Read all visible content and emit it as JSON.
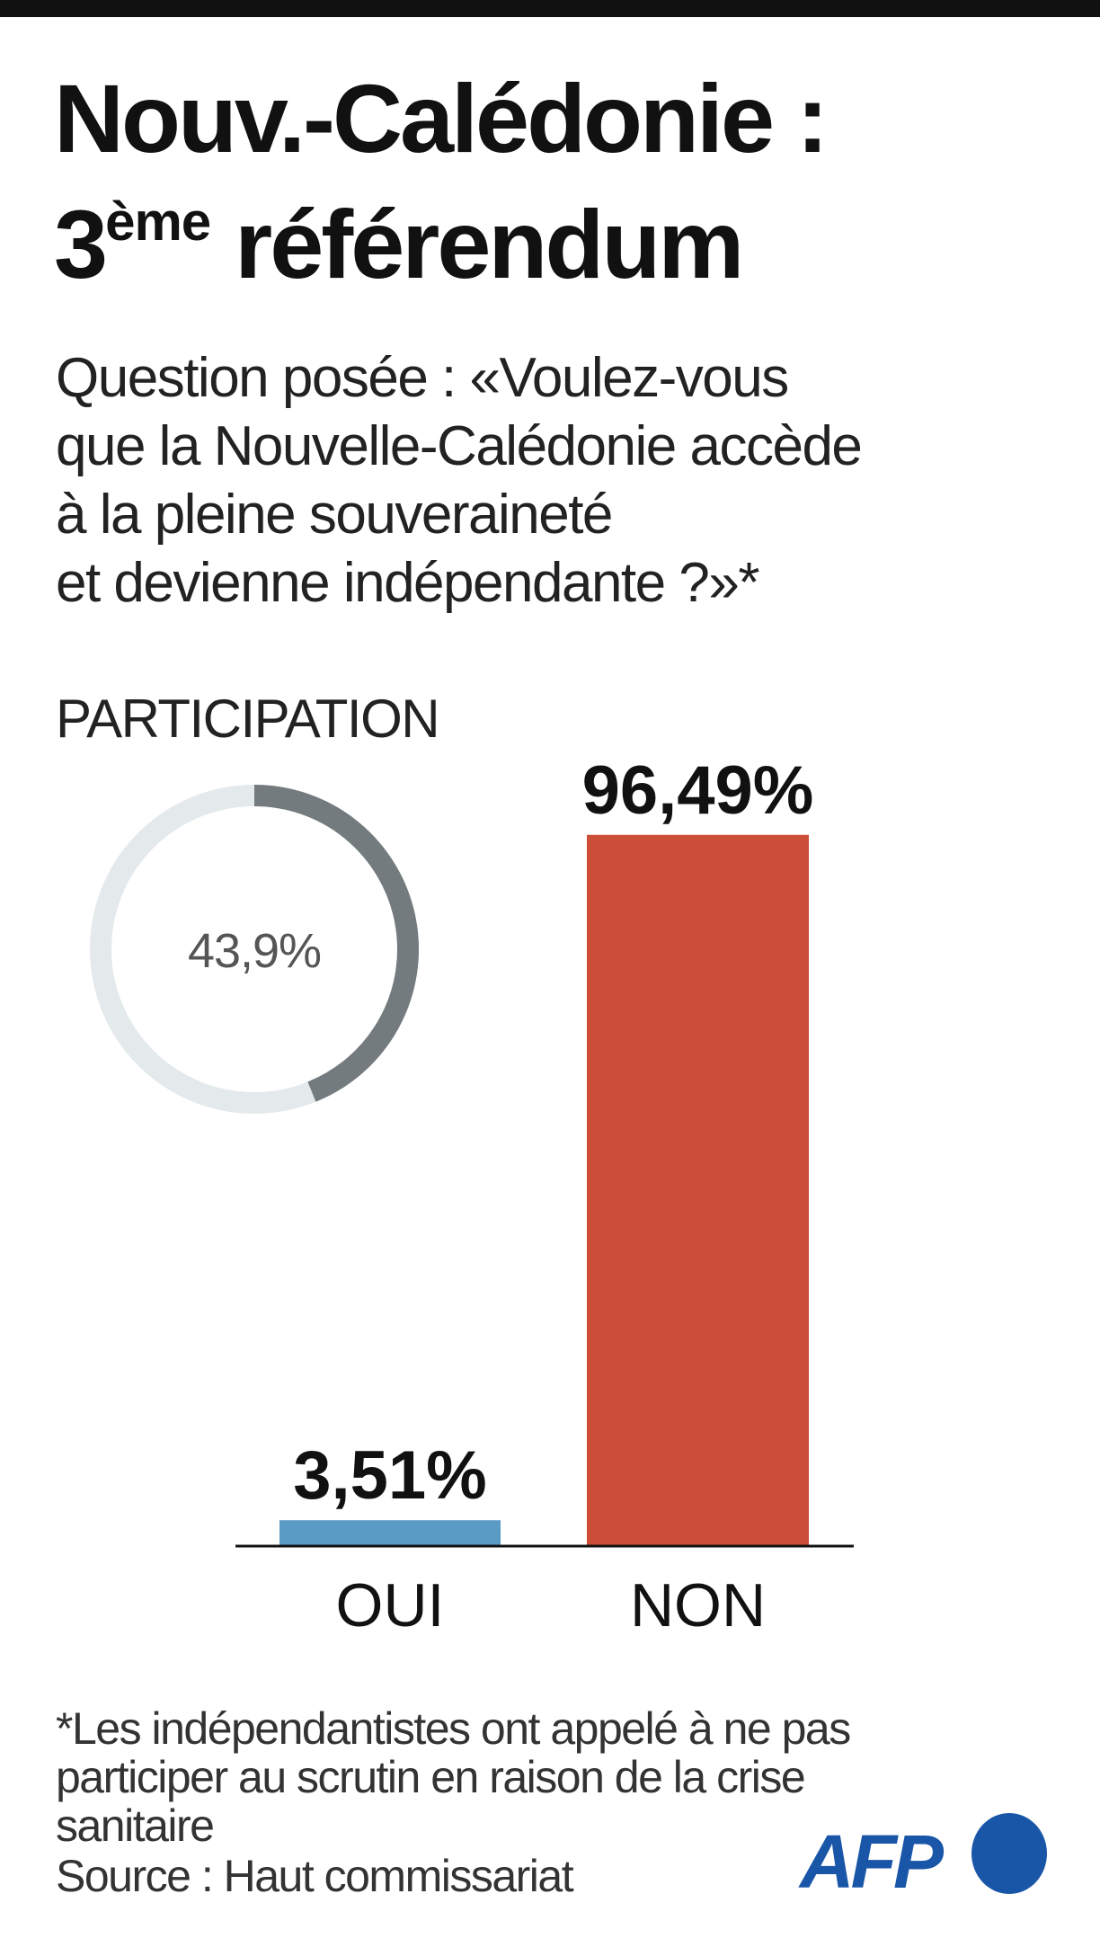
{
  "title": {
    "line1": "Nouv.-Calédonie :",
    "line2_number": "3",
    "line2_sup": "ème",
    "line2_rest": " référendum"
  },
  "question": [
    "Question posée : «Voulez-vous",
    "que la Nouvelle-Calédonie accède",
    "à la pleine souveraineté",
    "et devienne indépendante ?»*"
  ],
  "participation": {
    "label": "PARTICIPATION",
    "value": 43.9,
    "value_label": "43,9%",
    "color_filled": "#737b7e",
    "color_track": "#e4e9eb"
  },
  "chart_data": {
    "type": "bar",
    "categories": [
      "OUI",
      "NON"
    ],
    "values": [
      3.51,
      96.49
    ],
    "value_labels": [
      "3,51%",
      "96,49%"
    ],
    "colors": [
      "#5a9bc6",
      "#cc4e38"
    ],
    "ylim": [
      0,
      100
    ],
    "grid": false
  },
  "footnote": [
    "*Les indépendantistes ont appelé à ne pas",
    "participer au scrutin en raison de la crise",
    "sanitaire"
  ],
  "source": "Source : Haut commissariat",
  "logo": {
    "text": "AFP",
    "color": "#1a56a8"
  }
}
